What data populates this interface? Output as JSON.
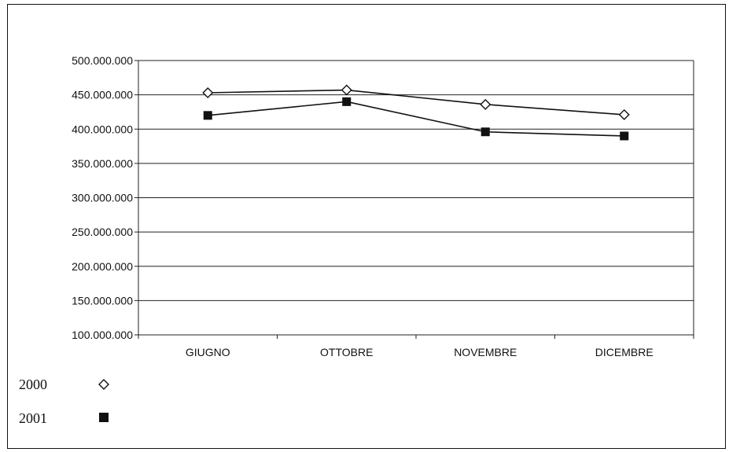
{
  "chart_data": {
    "type": "line",
    "categories": [
      "GIUGNO",
      "OTTOBRE",
      "NOVEMBRE",
      "DICEMBRE"
    ],
    "series": [
      {
        "name": "2000",
        "values": [
          453000000,
          457000000,
          436000000,
          421000000
        ],
        "marker": "diamond-open",
        "color": "#111111"
      },
      {
        "name": "2001",
        "values": [
          420000000,
          440000000,
          396000000,
          390000000
        ],
        "marker": "square-filled",
        "color": "#111111"
      }
    ],
    "ylim": [
      100000000,
      500000000
    ],
    "yticks": [
      100000000,
      150000000,
      200000000,
      250000000,
      300000000,
      350000000,
      400000000,
      450000000,
      500000000
    ],
    "ytick_labels": [
      "100.000.000",
      "150.000.000",
      "200.000.000",
      "250.000.000",
      "300.000.000",
      "350.000.000",
      "400.000.000",
      "450.000.000",
      "500.000.000"
    ],
    "grid": true,
    "legend_position": "bottom-left",
    "title": "",
    "xlabel": "",
    "ylabel": ""
  }
}
